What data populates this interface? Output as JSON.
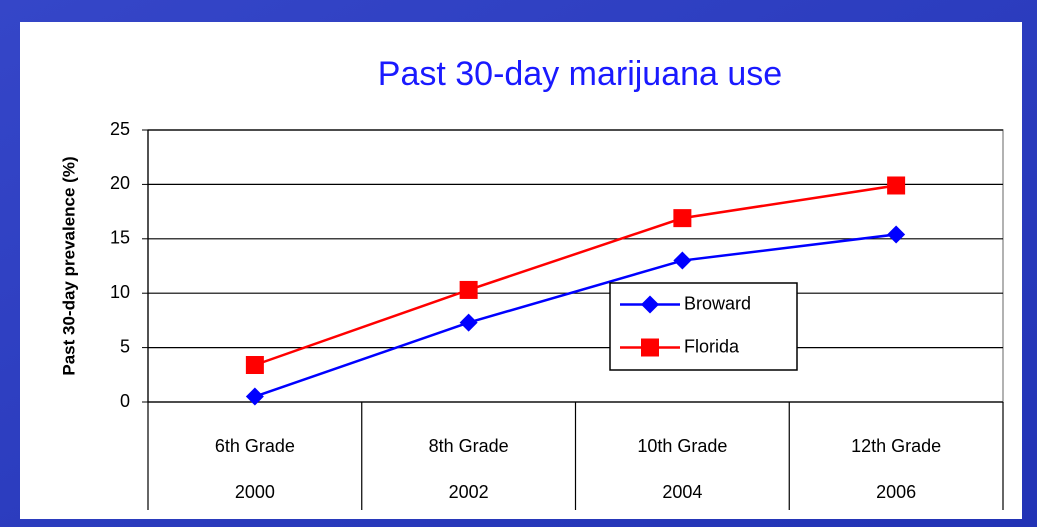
{
  "chart_data": {
    "type": "line",
    "title": "Past 30-day marijuana use",
    "y_label": "Past 30-day prevalence (%)",
    "categories": [
      "6th Grade",
      "8th Grade",
      "10th Grade",
      "12th Grade"
    ],
    "years": [
      "2000",
      "2002",
      "2004",
      "2006"
    ],
    "series": [
      {
        "name": "Broward",
        "color": "#0000ff",
        "marker": "diamond",
        "values": [
          0.5,
          7.3,
          13,
          15.4
        ]
      },
      {
        "name": "Florida",
        "color": "#ff0000",
        "marker": "square",
        "values": [
          3.4,
          10.3,
          16.9,
          19.9
        ]
      }
    ],
    "ylim": [
      0,
      25
    ],
    "yticks": [
      0,
      5,
      10,
      15,
      20,
      25
    ],
    "grid": true
  }
}
